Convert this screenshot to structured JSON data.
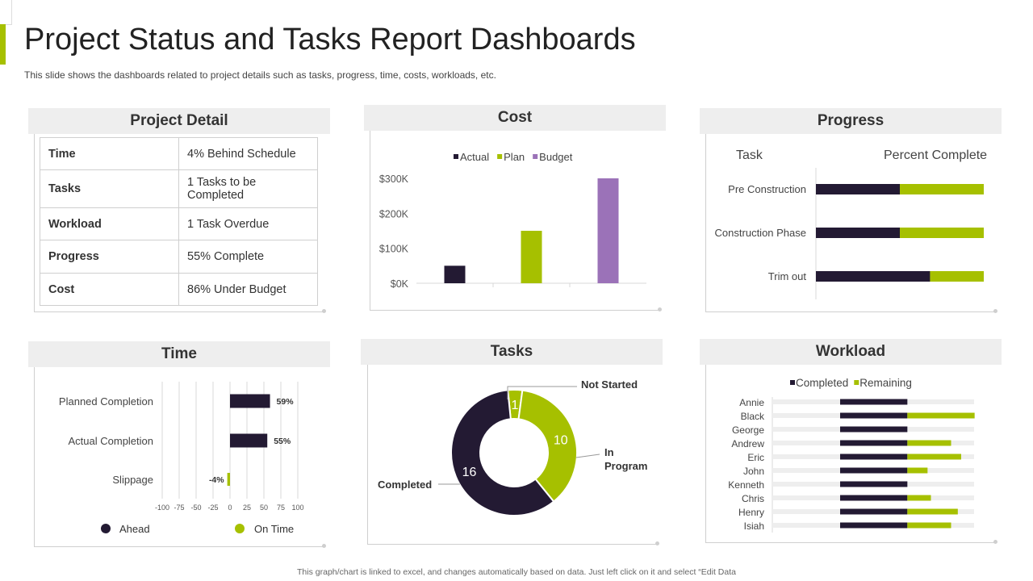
{
  "page": {
    "title": "Project Status and Tasks Report Dashboards",
    "subtitle": "This slide shows the dashboards related to project details such as tasks, progress, time, costs, workloads, etc.",
    "footer": "This graph/chart is linked to excel, and changes automatically based on data. Just left click on it and select “Edit Data"
  },
  "colors": {
    "accent": "#a6c000",
    "dark": "#231a33",
    "purple": "#9b72b8",
    "track": "#eeeeee",
    "grid": "#d9d9d9"
  },
  "project_detail": {
    "title": "Project Detail",
    "rows": [
      {
        "key": "Time",
        "value": "4% Behind Schedule"
      },
      {
        "key": "Tasks",
        "value": "1 Tasks to be Completed"
      },
      {
        "key": "Workload",
        "value": "1 Task Overdue"
      },
      {
        "key": "Progress",
        "value": "55% Complete"
      },
      {
        "key": "Cost",
        "value": "86% Under Budget"
      }
    ]
  },
  "panels": {
    "cost": "Cost",
    "progress": "Progress",
    "time": "Time",
    "tasks": "Tasks",
    "workload": "Workload"
  },
  "chart_data": [
    {
      "id": "cost",
      "type": "bar",
      "title": "Cost",
      "series": [
        {
          "name": "Actual",
          "color": "#231a33",
          "values": [
            50000,
            0,
            0
          ]
        },
        {
          "name": "Plan",
          "color": "#a6c000",
          "values": [
            0,
            150000,
            0
          ]
        },
        {
          "name": "Budget",
          "color": "#9b72b8",
          "values": [
            0,
            0,
            300000
          ]
        }
      ],
      "ylim": [
        0,
        300000
      ],
      "yticks": [
        0,
        100000,
        200000,
        300000
      ],
      "ytick_labels": [
        "$0K",
        "$100K",
        "$200K",
        "$300K"
      ]
    },
    {
      "id": "progress",
      "type": "bar",
      "orientation": "horizontal",
      "title": "Progress",
      "header_left": "Task",
      "header_right": "Percent Complete",
      "categories": [
        "Pre Construction",
        "Construction Phase",
        "Trim out"
      ],
      "series": [
        {
          "name": "Complete",
          "color": "#231a33",
          "values": [
            50,
            50,
            68
          ]
        },
        {
          "name": "Remaining",
          "color": "#a6c000",
          "values": [
            50,
            50,
            32
          ]
        }
      ]
    },
    {
      "id": "time",
      "type": "bar",
      "orientation": "horizontal",
      "title": "Time",
      "categories": [
        "Planned Completion",
        "Actual Completion",
        "Slippage"
      ],
      "values": [
        59,
        55,
        -4
      ],
      "value_labels": [
        "59%",
        "55%",
        "-4%"
      ],
      "bar_colors": [
        "#231a33",
        "#231a33",
        "#a6c000"
      ],
      "xlim": [
        -100,
        100
      ],
      "xticks": [
        -100,
        -75,
        -50,
        -25,
        0,
        25,
        50,
        75,
        100
      ],
      "legend": [
        {
          "label": "Ahead",
          "color": "#231a33"
        },
        {
          "label": "On Time",
          "color": "#a6c000"
        }
      ]
    },
    {
      "id": "tasks",
      "type": "pie",
      "donut": true,
      "title": "Tasks",
      "slices": [
        {
          "label": "Not Started",
          "value": 1,
          "color": "#a6c000"
        },
        {
          "label": "In Program",
          "value": 10,
          "color": "#a6c000"
        },
        {
          "label": "Completed",
          "value": 16,
          "color": "#231a33"
        }
      ],
      "annotations": [
        "Not Started",
        "In",
        "Program",
        "Completed"
      ]
    },
    {
      "id": "workload",
      "type": "bar",
      "orientation": "horizontal",
      "stacked": true,
      "title": "Workload",
      "categories": [
        "Annie",
        "Black",
        "George",
        "Andrew",
        "Eric",
        "John",
        "Kenneth",
        "Chris",
        "Henry",
        "Isiah"
      ],
      "series": [
        {
          "name": "Completed",
          "color": "#231a33",
          "values": [
            2,
            2,
            2,
            2,
            2,
            2,
            2,
            2,
            2,
            2
          ]
        },
        {
          "name": "Remaining",
          "color": "#a6c000",
          "values": [
            0,
            2,
            0,
            1.3,
            1.6,
            0.6,
            0,
            0.7,
            1.5,
            1.3
          ]
        }
      ],
      "xlim": [
        0,
        6
      ]
    }
  ]
}
